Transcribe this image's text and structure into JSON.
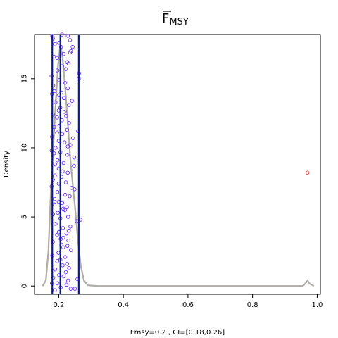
{
  "chart_data": {
    "type": "scatter",
    "title": "F",
    "title_subscript": "MSY",
    "xlabel": "Fmsy=0.2 , CI=[0.18,0.26]",
    "ylabel": "Density",
    "xlim": [
      0.125,
      1.01
    ],
    "ylim": [
      -0.6,
      18.2
    ],
    "x_ticks": [
      0.2,
      0.4,
      0.6,
      0.8,
      1.0
    ],
    "x_tick_labels": [
      "0.2",
      "0.4",
      "0.6",
      "0.8",
      "1.0"
    ],
    "y_ticks": [
      0,
      5,
      10,
      15
    ],
    "y_tick_labels": [
      "0",
      "5",
      "10",
      "15"
    ],
    "grid": false,
    "colors": {
      "points": "#6a2cff",
      "outlier": "#e8413c",
      "density": "#b0aca6",
      "ci_lines": "#0a1a8c"
    },
    "vertical_lines": [
      0.18,
      0.205,
      0.262
    ],
    "density_curve": [
      [
        0.15,
        0.0
      ],
      [
        0.16,
        0.4
      ],
      [
        0.168,
        2.5
      ],
      [
        0.175,
        6.5
      ],
      [
        0.182,
        9.5
      ],
      [
        0.19,
        13.0
      ],
      [
        0.198,
        16.0
      ],
      [
        0.205,
        17.5
      ],
      [
        0.212,
        16.5
      ],
      [
        0.22,
        14.3
      ],
      [
        0.228,
        11.8
      ],
      [
        0.236,
        9.2
      ],
      [
        0.244,
        7.2
      ],
      [
        0.252,
        5.3
      ],
      [
        0.26,
        3.2
      ],
      [
        0.268,
        1.5
      ],
      [
        0.278,
        0.4
      ],
      [
        0.29,
        0.05
      ],
      [
        0.32,
        0.0
      ],
      [
        0.955,
        0.0
      ],
      [
        0.962,
        0.15
      ],
      [
        0.97,
        0.38
      ],
      [
        0.978,
        0.15
      ],
      [
        0.99,
        0.0
      ]
    ],
    "points": [
      [
        0.18,
        18.1
      ],
      [
        0.21,
        18.2
      ],
      [
        0.228,
        18.1
      ],
      [
        0.182,
        17.9
      ],
      [
        0.235,
        17.8
      ],
      [
        0.2,
        17.6
      ],
      [
        0.188,
        17.5
      ],
      [
        0.207,
        17.3
      ],
      [
        0.243,
        17.3
      ],
      [
        0.238,
        17.0
      ],
      [
        0.235,
        16.9
      ],
      [
        0.215,
        16.8
      ],
      [
        0.185,
        16.6
      ],
      [
        0.195,
        16.5
      ],
      [
        0.226,
        16.2
      ],
      [
        0.231,
        16.1
      ],
      [
        0.21,
        15.9
      ],
      [
        0.222,
        15.7
      ],
      [
        0.196,
        15.6
      ],
      [
        0.263,
        15.4
      ],
      [
        0.178,
        15.2
      ],
      [
        0.262,
        15.0
      ],
      [
        0.202,
        14.9
      ],
      [
        0.22,
        14.7
      ],
      [
        0.183,
        14.5
      ],
      [
        0.228,
        14.3
      ],
      [
        0.186,
        14.1
      ],
      [
        0.208,
        14.0
      ],
      [
        0.179,
        13.9
      ],
      [
        0.2,
        13.8
      ],
      [
        0.216,
        13.6
      ],
      [
        0.241,
        13.4
      ],
      [
        0.19,
        13.3
      ],
      [
        0.231,
        13.1
      ],
      [
        0.205,
        12.9
      ],
      [
        0.2,
        12.7
      ],
      [
        0.218,
        12.6
      ],
      [
        0.182,
        12.4
      ],
      [
        0.223,
        12.3
      ],
      [
        0.195,
        12.2
      ],
      [
        0.21,
        12.0
      ],
      [
        0.232,
        11.8
      ],
      [
        0.202,
        11.6
      ],
      [
        0.186,
        11.5
      ],
      [
        0.226,
        11.3
      ],
      [
        0.26,
        11.2
      ],
      [
        0.195,
        11.1
      ],
      [
        0.211,
        11.0
      ],
      [
        0.179,
        10.8
      ],
      [
        0.244,
        10.7
      ],
      [
        0.2,
        10.5
      ],
      [
        0.218,
        10.4
      ],
      [
        0.236,
        10.2
      ],
      [
        0.228,
        10.1
      ],
      [
        0.19,
        10.0
      ],
      [
        0.178,
        9.8
      ],
      [
        0.205,
        9.7
      ],
      [
        0.185,
        9.6
      ],
      [
        0.227,
        9.5
      ],
      [
        0.248,
        9.3
      ],
      [
        0.196,
        9.1
      ],
      [
        0.215,
        8.9
      ],
      [
        0.189,
        8.8
      ],
      [
        0.247,
        8.7
      ],
      [
        0.2,
        8.5
      ],
      [
        0.212,
        8.3
      ],
      [
        0.228,
        8.2
      ],
      [
        0.188,
        8.0
      ],
      [
        0.209,
        7.9
      ],
      [
        0.182,
        7.7
      ],
      [
        0.222,
        7.5
      ],
      [
        0.2,
        7.4
      ],
      [
        0.178,
        7.2
      ],
      [
        0.24,
        7.1
      ],
      [
        0.249,
        7.0
      ],
      [
        0.196,
        6.8
      ],
      [
        0.22,
        6.6
      ],
      [
        0.234,
        6.5
      ],
      [
        0.187,
        6.3
      ],
      [
        0.2,
        6.1
      ],
      [
        0.211,
        6.0
      ],
      [
        0.187,
        5.9
      ],
      [
        0.225,
        5.7
      ],
      [
        0.214,
        5.6
      ],
      [
        0.219,
        5.5
      ],
      [
        0.197,
        5.3
      ],
      [
        0.182,
        5.2
      ],
      [
        0.229,
        5.0
      ],
      [
        0.205,
        4.9
      ],
      [
        0.267,
        4.8
      ],
      [
        0.256,
        4.7
      ],
      [
        0.19,
        4.5
      ],
      [
        0.236,
        4.3
      ],
      [
        0.213,
        4.2
      ],
      [
        0.231,
        4.0
      ],
      [
        0.2,
        3.9
      ],
      [
        0.224,
        3.8
      ],
      [
        0.195,
        3.7
      ],
      [
        0.214,
        3.5
      ],
      [
        0.206,
        3.4
      ],
      [
        0.23,
        3.3
      ],
      [
        0.182,
        3.2
      ],
      [
        0.208,
        3.0
      ],
      [
        0.227,
        2.9
      ],
      [
        0.214,
        2.8
      ],
      [
        0.238,
        2.6
      ],
      [
        0.199,
        2.4
      ],
      [
        0.18,
        2.2
      ],
      [
        0.22,
        2.1
      ],
      [
        0.205,
        1.9
      ],
      [
        0.195,
        1.8
      ],
      [
        0.226,
        1.6
      ],
      [
        0.212,
        1.5
      ],
      [
        0.232,
        1.3
      ],
      [
        0.189,
        1.2
      ],
      [
        0.222,
        1.0
      ],
      [
        0.201,
        0.8
      ],
      [
        0.215,
        0.7
      ],
      [
        0.183,
        0.6
      ],
      [
        0.258,
        0.5
      ],
      [
        0.229,
        0.4
      ],
      [
        0.196,
        0.2
      ],
      [
        0.179,
        0.2
      ],
      [
        0.224,
        0.1
      ],
      [
        0.206,
        -0.1
      ],
      [
        0.237,
        -0.2
      ],
      [
        0.25,
        -0.2
      ],
      [
        0.188,
        -0.3
      ]
    ],
    "outliers": [
      [
        0.97,
        8.2
      ]
    ]
  }
}
